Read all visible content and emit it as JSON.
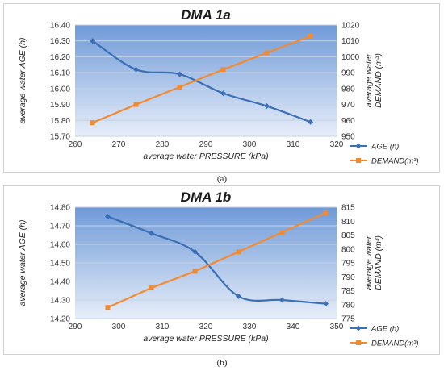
{
  "chart_data": [
    {
      "type": "line",
      "title": "DMA 1a",
      "xlabel": "average water PRESSURE (kPa)",
      "ylabel_left": "average water AGE (h)",
      "ylabel_right": [
        "average water",
        "DEMAND (m³)"
      ],
      "xlim": [
        260,
        320
      ],
      "xticks": [
        "260",
        "270",
        "280",
        "290",
        "300",
        "310",
        "320"
      ],
      "ylim_left": [
        15.7,
        16.4
      ],
      "yticks_left": [
        "15.70",
        "15.80",
        "15.90",
        "16.00",
        "16.10",
        "16.20",
        "16.30",
        "16.40"
      ],
      "ylim_right": [
        950,
        1020
      ],
      "yticks_right": [
        "950",
        "960",
        "970",
        "980",
        "990",
        "1000",
        "1010",
        "1020"
      ],
      "grid": true,
      "legend_position": "right",
      "series": [
        {
          "name": "AGE (h)",
          "axis": "left",
          "color": "#3a6fb5",
          "marker": "diamond",
          "x": [
            264,
            274,
            284,
            294,
            304,
            314
          ],
          "y": [
            16.3,
            16.12,
            16.09,
            15.97,
            15.89,
            15.79
          ]
        },
        {
          "name": "DEMAND(m³)",
          "axis": "right",
          "color": "#f28a30",
          "marker": "square",
          "x": [
            264,
            274,
            284,
            294,
            304,
            314
          ],
          "y": [
            958.5,
            970,
            981,
            992,
            1002.5,
            1013
          ]
        }
      ]
    },
    {
      "type": "line",
      "title": "DMA 1b",
      "xlabel": "average water PRESSURE (kPa)",
      "ylabel_left": "average water AGE (h)",
      "ylabel_right": [
        "average water",
        "DEMAND (m³)"
      ],
      "xlim": [
        290,
        350
      ],
      "xticks": [
        "290",
        "300",
        "310",
        "320",
        "330",
        "340",
        "350"
      ],
      "ylim_left": [
        14.2,
        14.8
      ],
      "yticks_left": [
        "14.20",
        "14.30",
        "14.40",
        "14.50",
        "14.60",
        "14.70",
        "14.80"
      ],
      "ylim_right": [
        775,
        815
      ],
      "yticks_right": [
        "775",
        "780",
        "785",
        "790",
        "795",
        "800",
        "805",
        "810",
        "815"
      ],
      "grid": true,
      "legend_position": "right",
      "series": [
        {
          "name": "AGE (h)",
          "axis": "left",
          "color": "#3a6fb5",
          "marker": "diamond",
          "x": [
            297.5,
            307.5,
            317.5,
            327.5,
            337.5,
            347.5
          ],
          "y": [
            14.75,
            14.66,
            14.56,
            14.32,
            14.3,
            14.28
          ]
        },
        {
          "name": "DEMAND(m³)",
          "axis": "right",
          "color": "#f28a30",
          "marker": "square",
          "x": [
            297.5,
            307.5,
            317.5,
            327.5,
            337.5,
            347.5
          ],
          "y": [
            779,
            786,
            792,
            799,
            806,
            813
          ]
        }
      ]
    }
  ],
  "captions": [
    "(a)",
    "(b)"
  ]
}
